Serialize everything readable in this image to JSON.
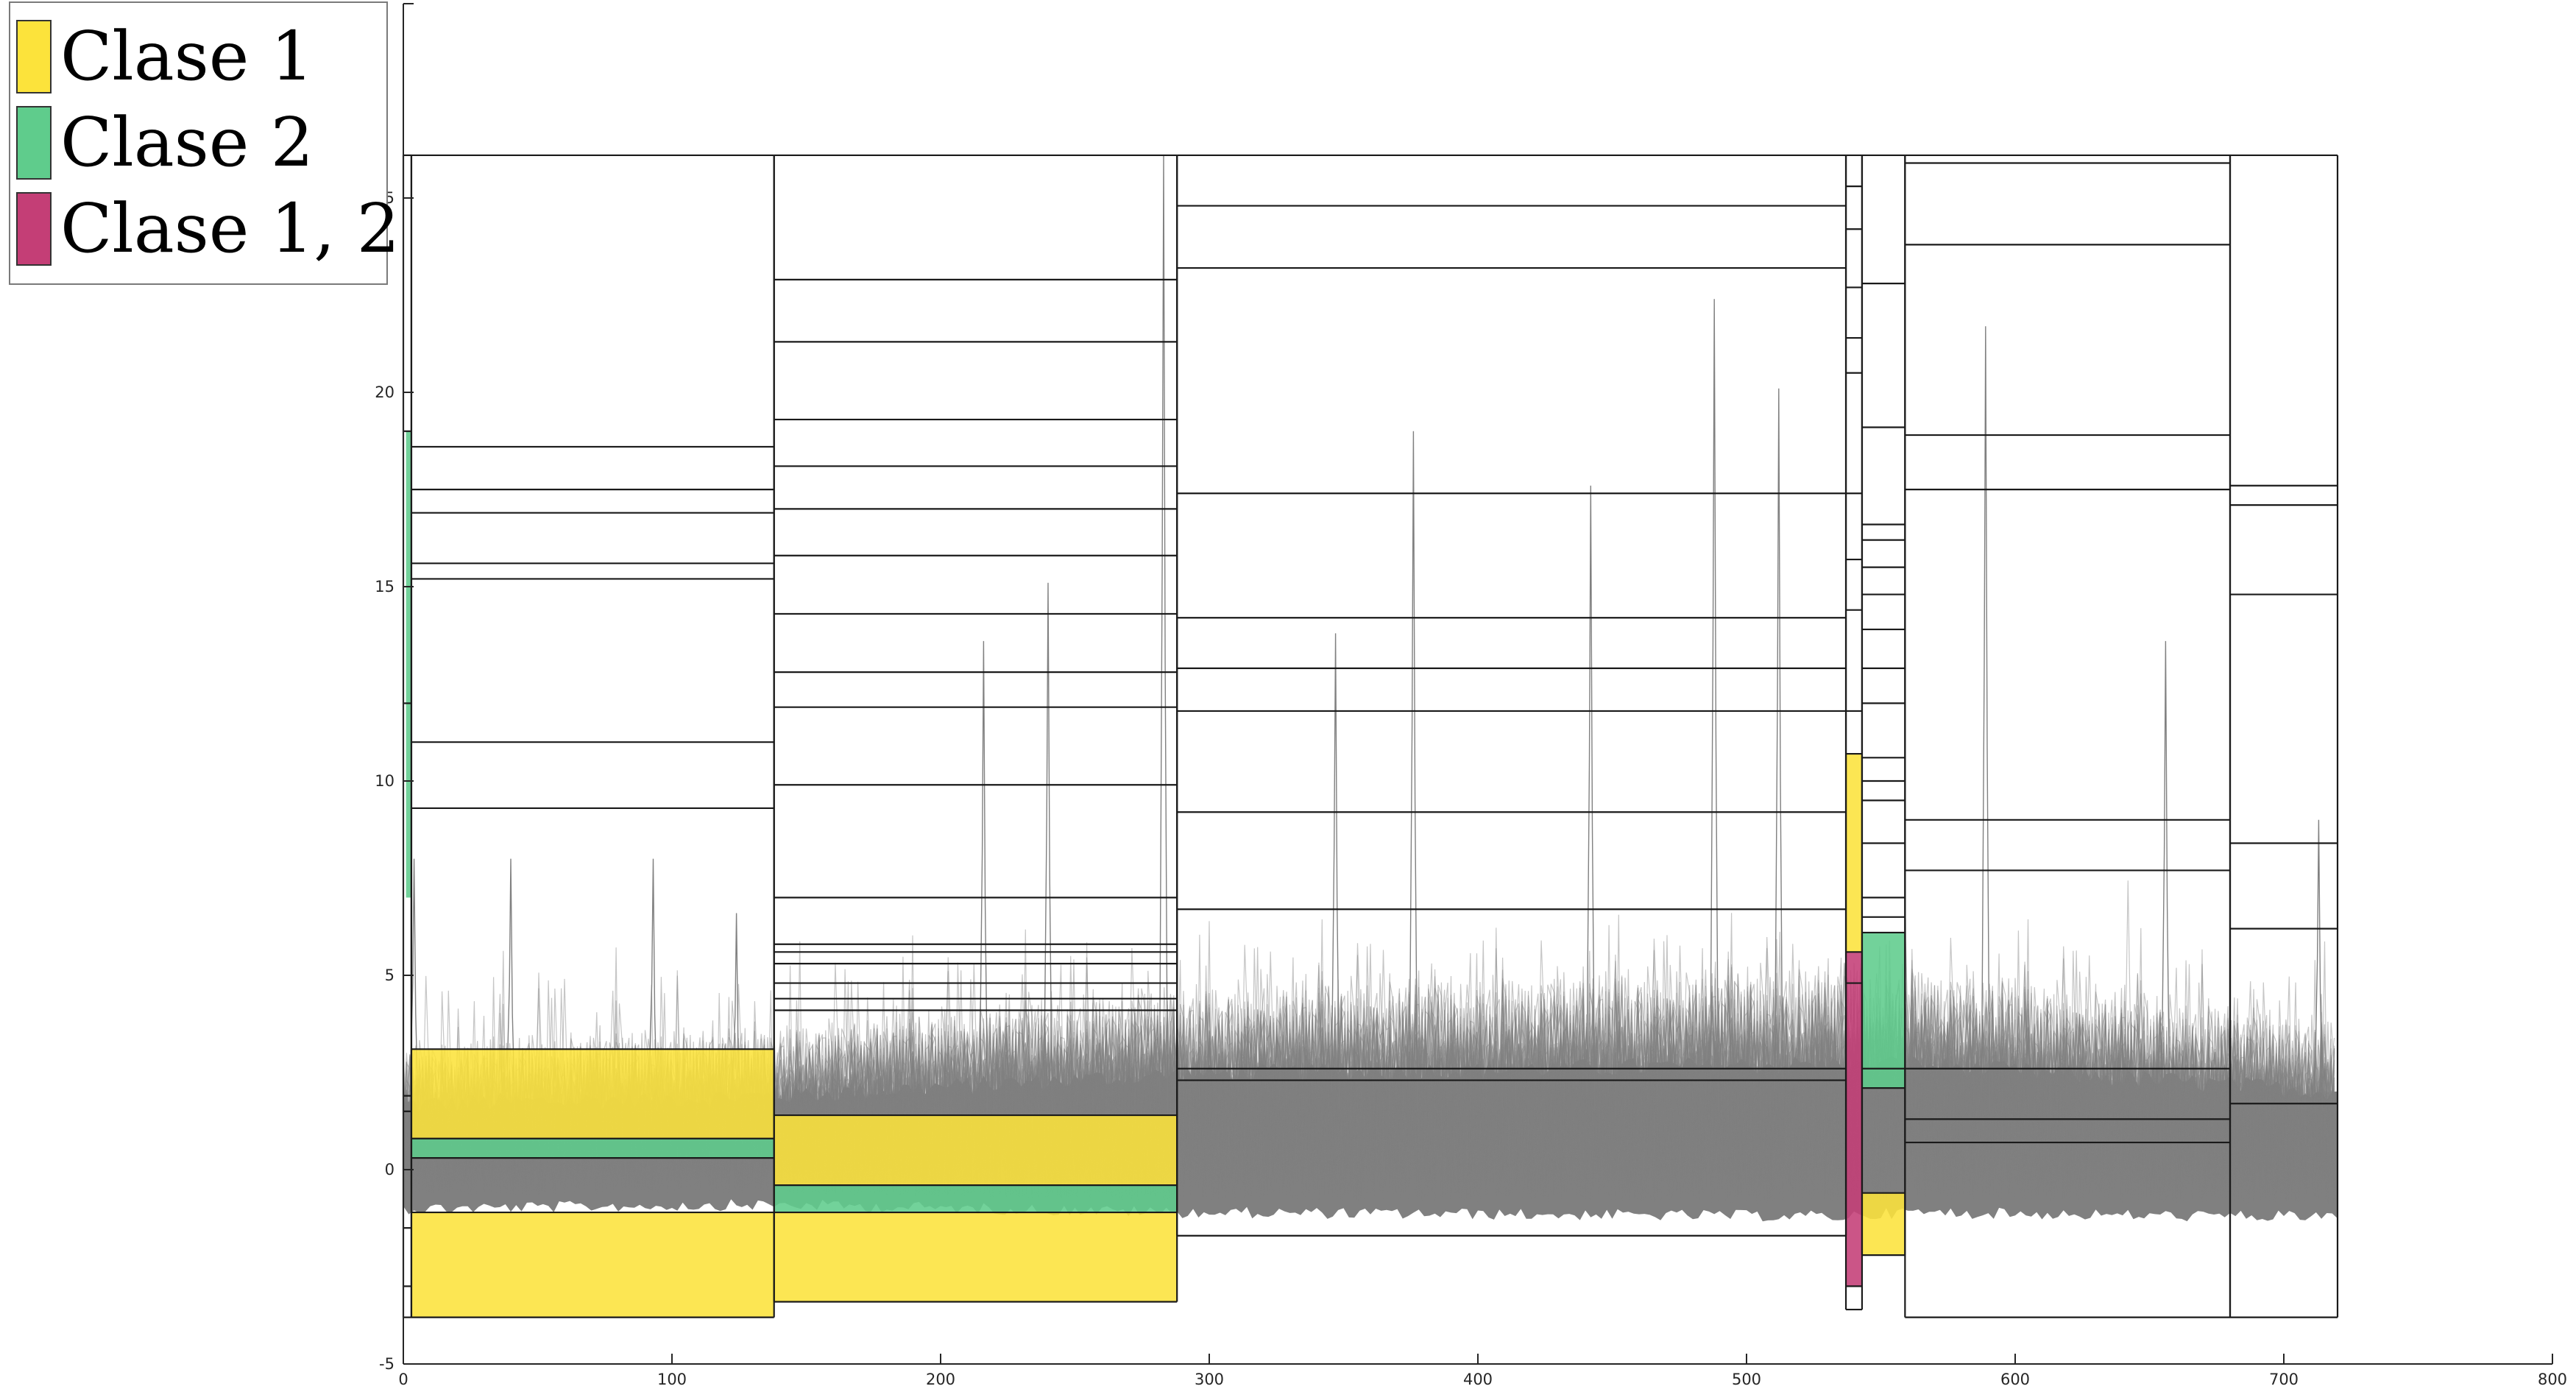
{
  "colors": {
    "clase1": "#fce33b",
    "clase2": "#5fcc8c",
    "clase12": "#c43e76",
    "traces": "#808080",
    "box_lines": "#1a1a1a"
  },
  "legend": {
    "items": [
      {
        "label": "Clase 1",
        "color": "#fce33b"
      },
      {
        "label": "Clase 2",
        "color": "#5fcc8c"
      },
      {
        "label": "Clase 1, 2",
        "color": "#c43e76"
      }
    ]
  },
  "chart_data": {
    "type": "area",
    "xlim": [
      0,
      800
    ],
    "ylim": [
      -5,
      30
    ],
    "x_ticks": [
      0,
      100,
      200,
      300,
      400,
      500,
      600,
      700,
      800
    ],
    "y_ticks": [
      -5,
      0,
      5,
      10,
      15,
      20,
      25,
      30
    ],
    "y_tick_labels": [
      "-5",
      "0",
      "5",
      "10",
      "15",
      "20",
      "25",
      ""
    ],
    "segments": [
      {
        "x": [
          0,
          3
        ],
        "bounds": [
          -3.8,
          -3.0,
          -1.5,
          1.5,
          1.9,
          12,
          19,
          26.1
        ]
      },
      {
        "x": [
          3,
          138
        ],
        "bounds": [
          -3.8,
          -1.1,
          0.3,
          0.8,
          3.1,
          9.3,
          11.0,
          15.2,
          15.6,
          16.9,
          17.5,
          18.6,
          26.1
        ]
      },
      {
        "x": [
          138,
          288
        ],
        "bounds": [
          -3.4,
          -1.1,
          -0.4,
          1.4,
          4.1,
          4.4,
          4.8,
          5.3,
          5.6,
          5.8,
          7.0,
          9.9,
          11.9,
          12.8,
          14.3,
          15.8,
          17.0,
          18.1,
          19.3,
          21.3,
          22.9,
          26.1
        ]
      },
      {
        "x": [
          288,
          537
        ],
        "bounds": [
          -1.7,
          2.3,
          2.6,
          6.7,
          9.2,
          11.8,
          12.9,
          14.2,
          17.4,
          23.2,
          24.8,
          26.1
        ]
      },
      {
        "x": [
          537,
          543
        ],
        "bounds": [
          -3.6,
          -3.0,
          4.8,
          5.6,
          10.7,
          11.8,
          14.4,
          15.7,
          17.4,
          20.5,
          21.4,
          22.7,
          24.2,
          25.3,
          26.1
        ]
      },
      {
        "x": [
          543,
          559
        ],
        "bounds": [
          -2.2,
          -0.6,
          2.1,
          2.6,
          6.1,
          6.5,
          7.0,
          8.4,
          9.5,
          10.0,
          10.6,
          12.0,
          12.9,
          13.9,
          14.8,
          15.5,
          16.2,
          16.6,
          19.1,
          22.8,
          26.1
        ]
      },
      {
        "x": [
          559,
          680
        ],
        "bounds": [
          -3.8,
          0.7,
          1.3,
          2.6,
          7.7,
          9.0,
          17.5,
          18.9,
          23.8,
          25.9,
          26.1
        ]
      },
      {
        "x": [
          680,
          720
        ],
        "bounds": [
          -3.8,
          1.7,
          6.2,
          8.4,
          14.8,
          17.1,
          17.6,
          26.1
        ]
      }
    ],
    "class_regions": [
      {
        "class": "Clase 2",
        "x": [
          1,
          3
        ],
        "y": [
          7.0,
          19.0
        ]
      },
      {
        "class": "Clase 1",
        "x": [
          3,
          138
        ],
        "y": [
          -3.8,
          -1.1
        ]
      },
      {
        "class": "Clase 2",
        "x": [
          3,
          138
        ],
        "y": [
          0.3,
          0.8
        ]
      },
      {
        "class": "Clase 1",
        "x": [
          3,
          138
        ],
        "y": [
          0.8,
          3.1
        ]
      },
      {
        "class": "Clase 1",
        "x": [
          138,
          288
        ],
        "y": [
          -3.4,
          -1.1
        ]
      },
      {
        "class": "Clase 2",
        "x": [
          138,
          288
        ],
        "y": [
          -1.1,
          -0.4
        ]
      },
      {
        "class": "Clase 1",
        "x": [
          138,
          288
        ],
        "y": [
          -0.4,
          1.4
        ]
      },
      {
        "class": "Clase 1, 2",
        "x": [
          537,
          543
        ],
        "y": [
          -3.0,
          5.6
        ]
      },
      {
        "class": "Clase 1",
        "x": [
          537,
          543
        ],
        "y": [
          5.6,
          10.7
        ]
      },
      {
        "class": "Clase 1",
        "x": [
          543,
          559
        ],
        "y": [
          -2.2,
          -0.6
        ]
      },
      {
        "class": "Clase 2",
        "x": [
          543,
          559
        ],
        "y": [
          2.1,
          6.1
        ]
      }
    ],
    "trace_band": {
      "description_free": true,
      "dense_core": [
        [
          0,
          -1.1,
          2.6
        ],
        [
          138,
          -1.0,
          3.0
        ],
        [
          288,
          -1.2,
          4.0
        ],
        [
          537,
          -1.3,
          4.5
        ],
        [
          559,
          -1.2,
          4.5
        ],
        [
          680,
          -1.3,
          3.5
        ],
        [
          720,
          -1.3,
          3.2
        ]
      ],
      "peaks": [
        [
          4,
          8.0
        ],
        [
          40,
          8.0
        ],
        [
          93,
          8.0
        ],
        [
          124,
          6.6
        ],
        [
          216,
          13.6
        ],
        [
          240,
          15.1
        ],
        [
          283,
          26.1
        ],
        [
          347,
          13.8
        ],
        [
          376,
          19.0
        ],
        [
          442,
          17.6
        ],
        [
          488,
          22.4
        ],
        [
          512,
          20.1
        ],
        [
          589,
          21.7
        ],
        [
          656,
          13.6
        ],
        [
          713,
          9.0
        ]
      ]
    }
  }
}
